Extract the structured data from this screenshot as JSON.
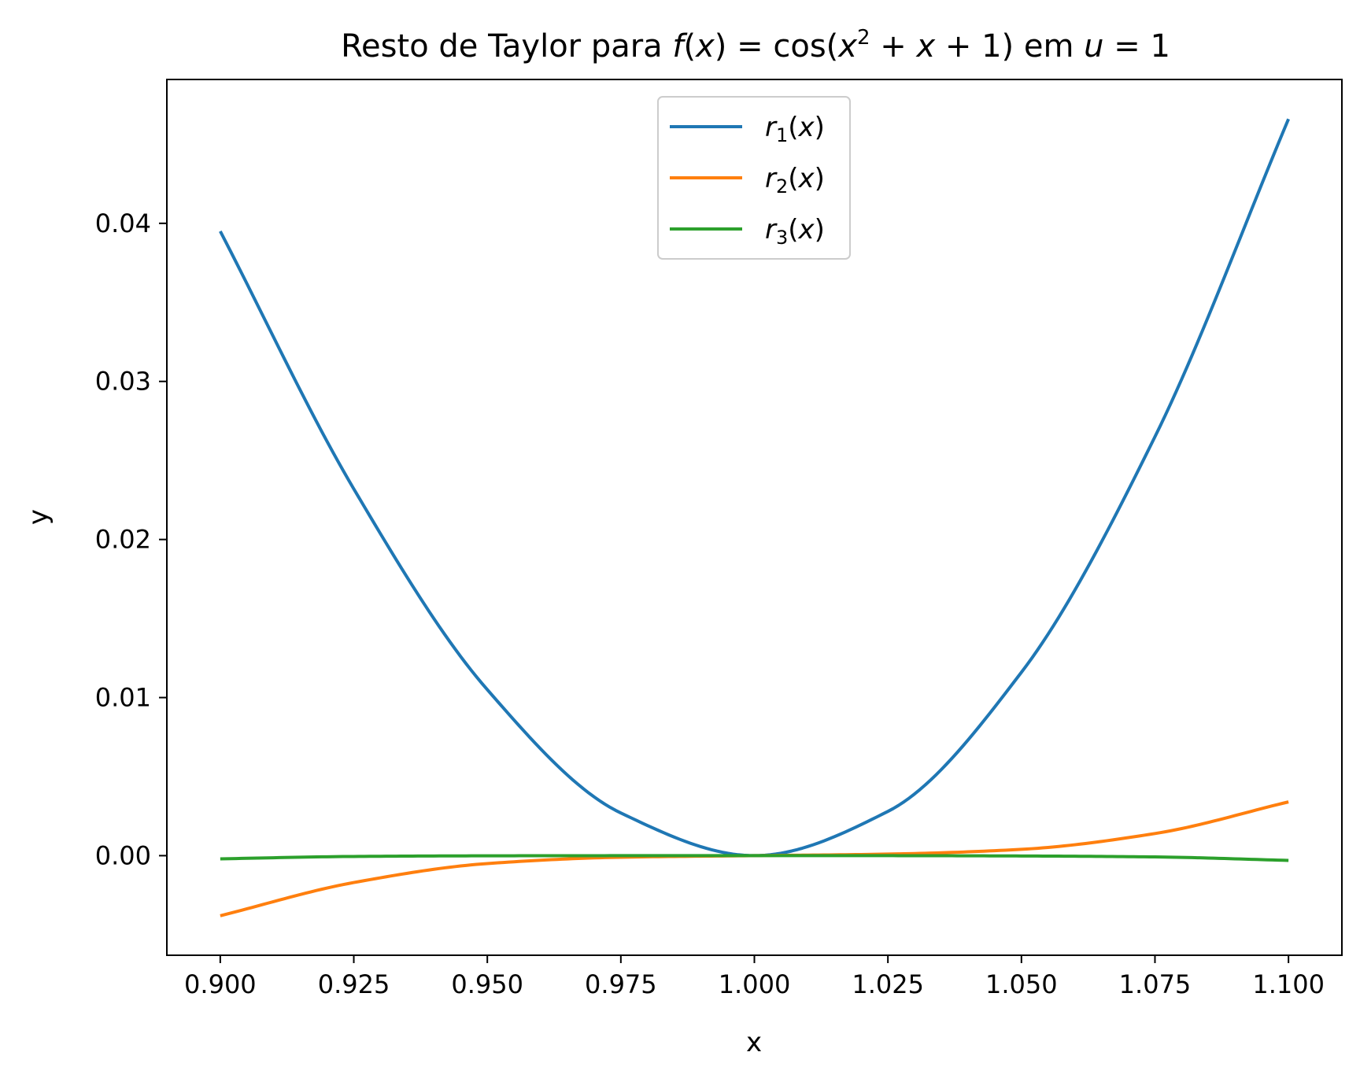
{
  "chart_data": {
    "type": "line",
    "title": {
      "prefix": "Resto de Taylor para ",
      "f": "f",
      "x": "x",
      "cos": "cos",
      "sup": "2",
      "plus": "+",
      "one": "1",
      "em": "em",
      "u": "u",
      "equals": "="
    },
    "xlabel": "x",
    "ylabel": "y",
    "xlim": [
      0.89,
      1.11
    ],
    "ylim": [
      -0.0063,
      0.0491
    ],
    "xticks": [
      0.9,
      0.925,
      0.95,
      0.975,
      1.0,
      1.025,
      1.05,
      1.075,
      1.1
    ],
    "xtick_labels": [
      "0.900",
      "0.925",
      "0.950",
      "0.975",
      "1.000",
      "1.025",
      "1.050",
      "1.075",
      "1.100"
    ],
    "yticks": [
      0.0,
      0.01,
      0.02,
      0.03,
      0.04
    ],
    "ytick_labels": [
      "0.00",
      "0.01",
      "0.02",
      "0.03",
      "0.04"
    ],
    "legend_position": "upper center",
    "series": [
      {
        "name": {
          "r": "r",
          "sub": "1",
          "x": "x"
        },
        "color": "#1f77b4",
        "x": [
          0.9,
          0.925,
          0.95,
          0.975,
          1.0,
          1.025,
          1.05,
          1.075,
          1.1
        ],
        "y": [
          0.0395,
          0.0232,
          0.0105,
          0.0027,
          0.0,
          0.0028,
          0.0116,
          0.0265,
          0.0466
        ]
      },
      {
        "name": {
          "r": "r",
          "sub": "2",
          "x": "x"
        },
        "color": "#ff7f0e",
        "x": [
          0.9,
          0.925,
          0.95,
          0.975,
          1.0,
          1.025,
          1.05,
          1.075,
          1.1
        ],
        "y": [
          -0.0038,
          -0.0017,
          -0.0005,
          -0.0001,
          0.0,
          0.0001,
          0.0004,
          0.0014,
          0.0034
        ]
      },
      {
        "name": {
          "r": "r",
          "sub": "3",
          "x": "x"
        },
        "color": "#2ca02c",
        "x": [
          0.9,
          0.925,
          0.95,
          0.975,
          1.0,
          1.025,
          1.05,
          1.075,
          1.1
        ],
        "y": [
          -0.0002,
          -5e-05,
          -1e-05,
          0.0,
          0.0,
          0.0,
          -2e-05,
          -8e-05,
          -0.0003
        ]
      }
    ]
  }
}
